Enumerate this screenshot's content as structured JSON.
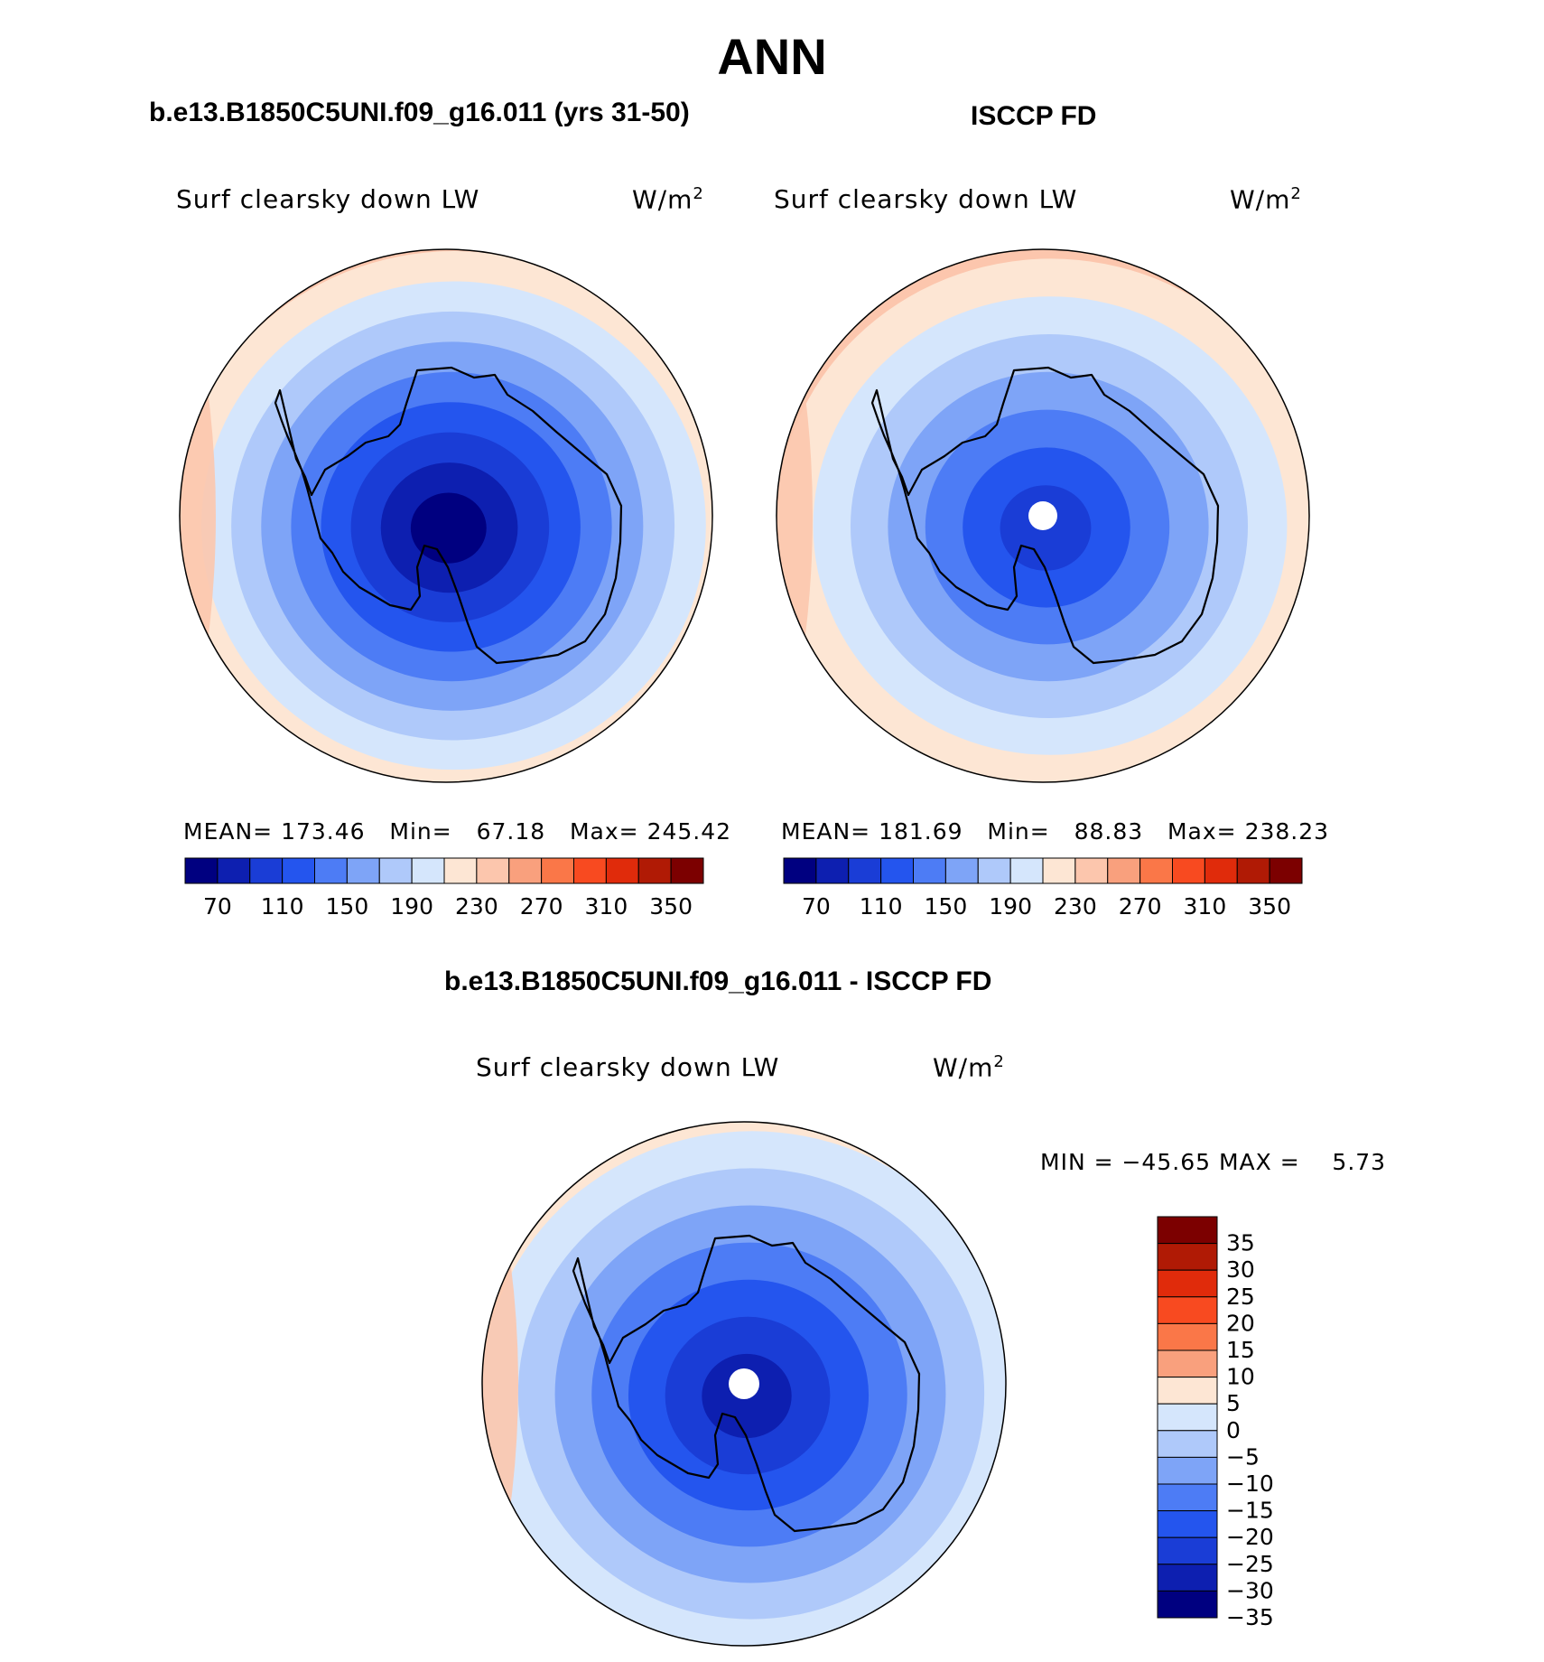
{
  "figure": {
    "title": "ANN"
  },
  "panels": [
    {
      "id": "model",
      "case_title": "b.e13.B1850C5UNI.f09_g16.011 (yrs 31-50)",
      "variable": "Surf clearsky down LW",
      "units_base": "W/m",
      "units_exp": "2",
      "stats": {
        "mean_label": "MEAN=",
        "mean": "173.46",
        "min_label": "Min=",
        "min": "67.18",
        "max_label": "Max=",
        "max": "245.42"
      }
    },
    {
      "id": "obs",
      "case_title": "ISCCP FD",
      "variable": "Surf clearsky down LW",
      "units_base": "W/m",
      "units_exp": "2",
      "stats": {
        "mean_label": "MEAN=",
        "mean": "181.69",
        "min_label": "Min=",
        "min": "88.83",
        "max_label": "Max=",
        "max": "238.23"
      }
    }
  ],
  "difference": {
    "title": "b.e13.B1850C5UNI.f09_g16.011 - ISCCP FD",
    "variable": "Surf clearsky down LW",
    "units_base": "W/m",
    "units_exp": "2",
    "minmax_text": "MIN = −45.65 MAX =    5.73"
  },
  "colorbar_abs": {
    "colors": [
      "#000080",
      "#0d1fb0",
      "#1a3dd6",
      "#2455ee",
      "#4d7cf5",
      "#7ea4f7",
      "#afc9fa",
      "#d5e6fc",
      "#fde6d4",
      "#fcc6ad",
      "#f9a07d",
      "#fa7748",
      "#f84a20",
      "#e02b0b",
      "#b01a05",
      "#7c0000"
    ],
    "tick_labels": [
      "70",
      "110",
      "150",
      "190",
      "230",
      "270",
      "310",
      "350"
    ]
  },
  "colorbar_diff": {
    "colors": [
      "#7c0000",
      "#b01a05",
      "#e02b0b",
      "#f84a20",
      "#fa7748",
      "#f9a07d",
      "#fde6d4",
      "#d5e6fc",
      "#afc9fa",
      "#7ea4f7",
      "#4d7cf5",
      "#2455ee",
      "#1a3dd6",
      "#0d1fb0",
      "#000080"
    ],
    "tick_labels": [
      "35",
      "30",
      "25",
      "20",
      "15",
      "10",
      "5",
      "0",
      "−5",
      "−10",
      "−15",
      "−20",
      "−25",
      "−30",
      "−35"
    ]
  },
  "maps": [
    {
      "name": "model",
      "rings": [
        "#fcc6ad",
        "#fde6d4",
        "#d5e6fc",
        "#afc9fa",
        "#7ea4f7",
        "#4d7cf5",
        "#2455ee",
        "#1a3dd6",
        "#0d1fb0",
        "#000080"
      ],
      "pole_hole": false
    },
    {
      "name": "obs",
      "rings": [
        "#fcc6ad",
        "#fde6d4",
        "#d5e6fc",
        "#afc9fa",
        "#7ea4f7",
        "#4d7cf5",
        "#2455ee",
        "#1a3dd6"
      ],
      "pole_hole": true
    },
    {
      "name": "diff",
      "rings": [
        "#fde6d4",
        "#d5e6fc",
        "#afc9fa",
        "#7ea4f7",
        "#4d7cf5",
        "#2455ee",
        "#1a3dd6",
        "#0d1fb0"
      ],
      "pole_hole": true
    }
  ]
}
